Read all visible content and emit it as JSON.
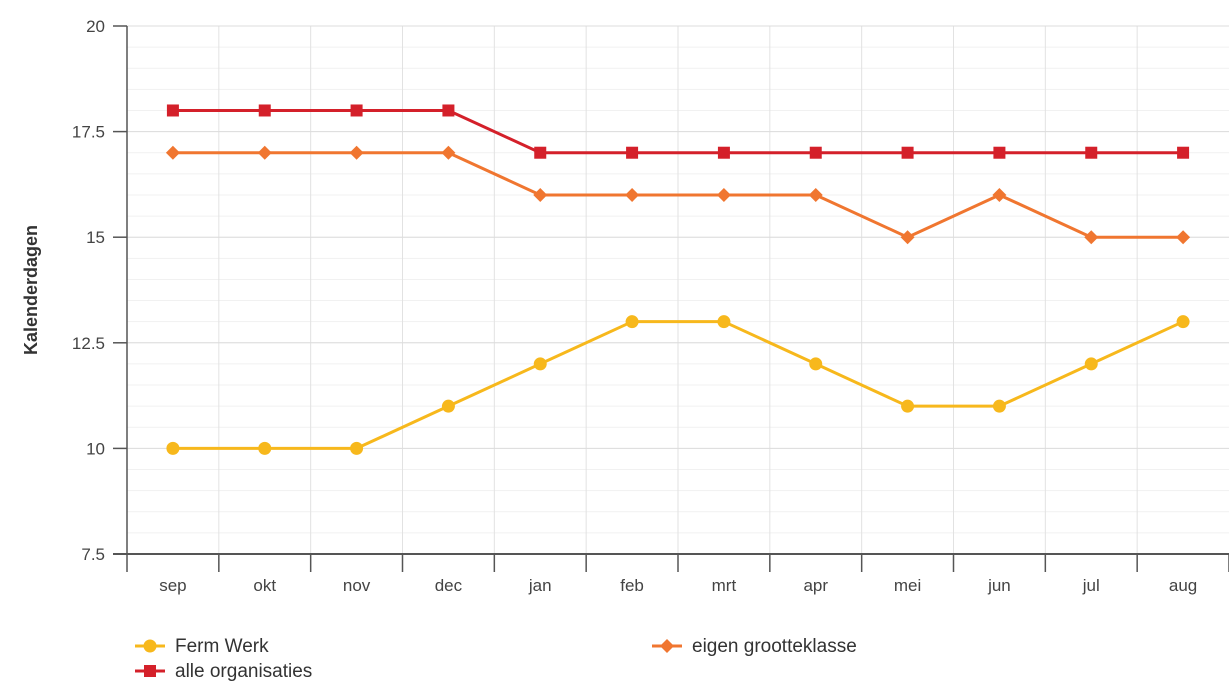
{
  "chart_data": {
    "type": "line",
    "title": "",
    "xlabel": "",
    "ylabel": "Kalenderdagen",
    "categories": [
      "sep",
      "okt",
      "nov",
      "dec",
      "jan",
      "feb",
      "mrt",
      "apr",
      "mei",
      "jun",
      "jul",
      "aug"
    ],
    "ylim": [
      7.5,
      20
    ],
    "yticks": [
      "7.5",
      "10",
      "12.5",
      "15",
      "17.5",
      "20"
    ],
    "grid": true,
    "legend_position": "bottom",
    "series": [
      {
        "name": "Ferm Werk",
        "color": "#f7b81c",
        "marker": "circle",
        "values": [
          10,
          10,
          10,
          11,
          12,
          13,
          13,
          12,
          11,
          11,
          12,
          13
        ]
      },
      {
        "name": "eigen grootteklasse",
        "color": "#f07630",
        "marker": "diamond",
        "values": [
          17,
          17,
          17,
          17,
          16,
          16,
          16,
          16,
          15,
          16,
          15,
          15
        ]
      },
      {
        "name": "alle organisaties",
        "color": "#d4202a",
        "marker": "square",
        "values": [
          18,
          18,
          18,
          18,
          17,
          17,
          17,
          17,
          17,
          17,
          17,
          17
        ]
      }
    ]
  }
}
